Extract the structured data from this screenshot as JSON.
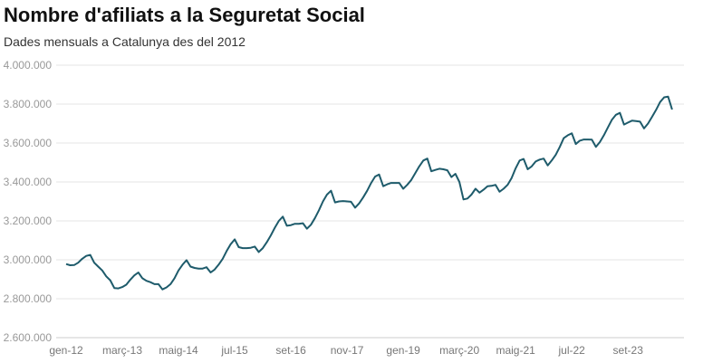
{
  "chart_data": {
    "type": "line",
    "title": "Nombre d'afiliats a la Seguretat Social",
    "subtitle": "Dades mensuals a Catalunya des del 2012",
    "xlabel": "",
    "ylabel": "",
    "ylim": [
      2600000,
      4000000
    ],
    "yticks": [
      2600000,
      2800000,
      3000000,
      3200000,
      3400000,
      3600000,
      3800000,
      4000000
    ],
    "ytick_labels": [
      "2.600.000",
      "2.800.000",
      "3.000.000",
      "3.200.000",
      "3.400.000",
      "3.600.000",
      "3.800.000",
      "4.000.000"
    ],
    "xtick_labels": [
      "gen-12",
      "març-13",
      "maig-14",
      "jul-15",
      "set-16",
      "nov-17",
      "gen-19",
      "març-20",
      "maig-21",
      "jul-22",
      "set-23"
    ],
    "x_start": "gen-12",
    "x_end": "ag-24",
    "grid": true,
    "line_color": "#1e5b6b",
    "values": [
      2978000,
      2972000,
      2973000,
      2985000,
      3005000,
      3020000,
      3025000,
      2985000,
      2965000,
      2945000,
      2915000,
      2895000,
      2855000,
      2853000,
      2860000,
      2872000,
      2898000,
      2920000,
      2935000,
      2905000,
      2892000,
      2885000,
      2875000,
      2875000,
      2848000,
      2858000,
      2875000,
      2905000,
      2945000,
      2975000,
      2998000,
      2965000,
      2958000,
      2955000,
      2955000,
      2962000,
      2935000,
      2950000,
      2975000,
      3005000,
      3045000,
      3080000,
      3105000,
      3065000,
      3060000,
      3060000,
      3062000,
      3068000,
      3040000,
      3060000,
      3090000,
      3125000,
      3165000,
      3200000,
      3222000,
      3175000,
      3178000,
      3185000,
      3185000,
      3188000,
      3160000,
      3180000,
      3215000,
      3255000,
      3300000,
      3335000,
      3355000,
      3295000,
      3300000,
      3302000,
      3300000,
      3298000,
      3268000,
      3290000,
      3320000,
      3355000,
      3395000,
      3428000,
      3438000,
      3378000,
      3388000,
      3395000,
      3395000,
      3395000,
      3365000,
      3385000,
      3410000,
      3445000,
      3480000,
      3510000,
      3520000,
      3455000,
      3462000,
      3468000,
      3465000,
      3460000,
      3425000,
      3442000,
      3400000,
      3310000,
      3315000,
      3335000,
      3365000,
      3345000,
      3360000,
      3378000,
      3380000,
      3385000,
      3350000,
      3365000,
      3385000,
      3420000,
      3470000,
      3510000,
      3518000,
      3465000,
      3480000,
      3505000,
      3515000,
      3520000,
      3485000,
      3510000,
      3540000,
      3580000,
      3625000,
      3640000,
      3650000,
      3595000,
      3612000,
      3618000,
      3618000,
      3617000,
      3580000,
      3605000,
      3640000,
      3680000,
      3720000,
      3745000,
      3755000,
      3695000,
      3705000,
      3715000,
      3713000,
      3710000,
      3675000,
      3700000,
      3735000,
      3770000,
      3810000,
      3835000,
      3838000,
      3772000
    ]
  }
}
